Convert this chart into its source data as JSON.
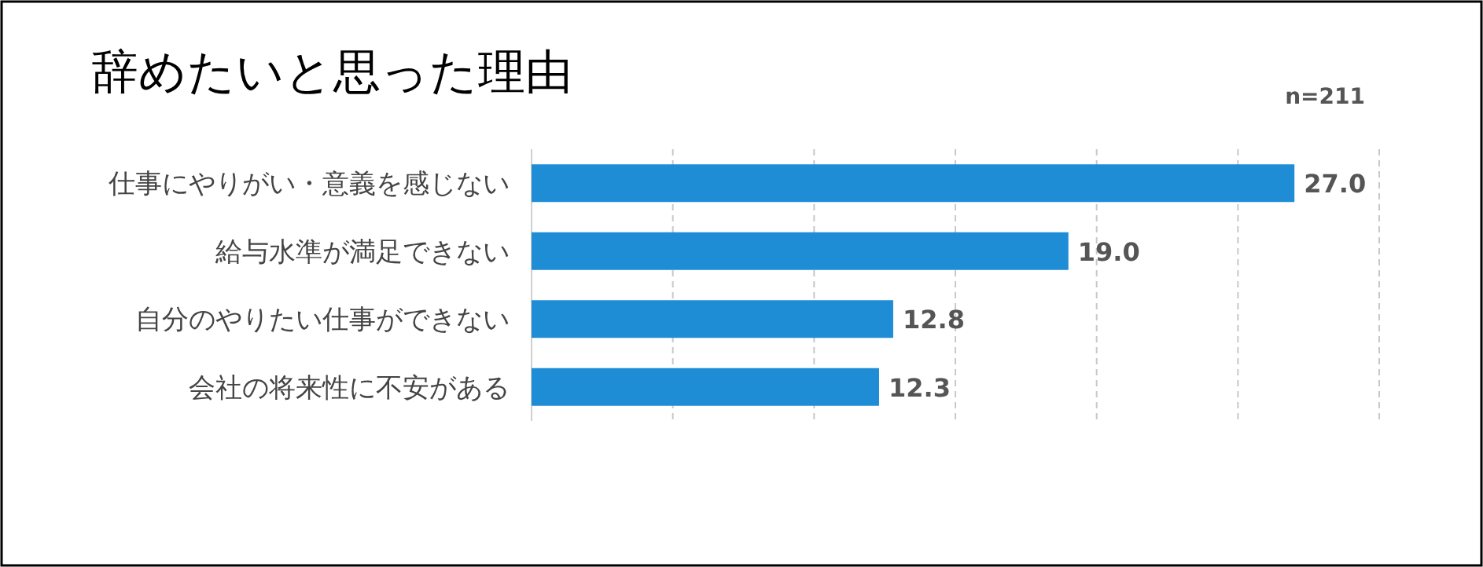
{
  "chart_data": {
    "type": "bar",
    "orientation": "horizontal",
    "title": "辞めたいと思った理由",
    "annotations": [
      "n=211"
    ],
    "categories": [
      "仕事にやりがい・意義を感じない",
      "給与水準が満足できない",
      "自分のやりたい仕事ができない",
      "会社の将来性に不安がある"
    ],
    "values": [
      27.0,
      19.0,
      12.8,
      12.3
    ],
    "value_labels": [
      "27.0",
      "19.0",
      "12.8",
      "12.3"
    ],
    "color": "#1f8dd6",
    "xlim": [
      0,
      30
    ],
    "xticks": [
      {
        "value": 0,
        "label": null
      },
      {
        "value": 5,
        "label": null
      },
      {
        "value": 10,
        "label": null
      },
      {
        "value": 15,
        "label": null
      },
      {
        "value": 20,
        "label": null
      },
      {
        "value": 25,
        "label": null
      },
      {
        "value": 30,
        "label": null
      }
    ],
    "grid": "x"
  }
}
